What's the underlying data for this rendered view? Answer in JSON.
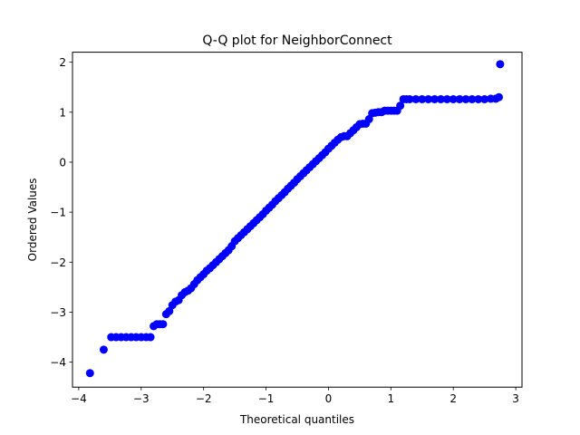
{
  "chart_data": {
    "type": "scatter",
    "title": "Q-Q plot for NeighborConnect",
    "xlabel": "Theoretical quantiles",
    "ylabel": "Ordered Values",
    "xlim": [
      -4.1,
      3.1
    ],
    "ylim": [
      -4.5,
      2.2
    ],
    "xticks": [
      -4,
      -3,
      -2,
      -1,
      0,
      1,
      2,
      3
    ],
    "xtick_labels": [
      "−4",
      "−3",
      "−2",
      "−1",
      "0",
      "1",
      "2",
      "3"
    ],
    "yticks": [
      -4,
      -3,
      -2,
      -1,
      0,
      1,
      2
    ],
    "ytick_labels": [
      "−4",
      "−3",
      "−2",
      "−1",
      "0",
      "1",
      "2"
    ],
    "grid": false,
    "marker_color": "#0000ff",
    "points": [
      [
        -3.82,
        -4.22
      ],
      [
        -3.6,
        -3.75
      ],
      [
        -3.48,
        -3.5
      ],
      [
        -3.4,
        -3.5
      ],
      [
        -3.32,
        -3.5
      ],
      [
        -3.24,
        -3.5
      ],
      [
        -3.16,
        -3.5
      ],
      [
        -3.08,
        -3.5
      ],
      [
        -3.0,
        -3.5
      ],
      [
        -2.92,
        -3.5
      ],
      [
        -2.85,
        -3.5
      ],
      [
        -2.8,
        -3.28
      ],
      [
        -2.75,
        -3.24
      ],
      [
        -2.7,
        -3.24
      ],
      [
        -2.65,
        -3.24
      ],
      [
        -2.6,
        -3.04
      ],
      [
        -2.55,
        -2.98
      ],
      [
        -2.5,
        -2.86
      ],
      [
        -2.45,
        -2.79
      ],
      [
        -2.4,
        -2.76
      ],
      [
        -2.35,
        -2.66
      ],
      [
        -2.3,
        -2.6
      ],
      [
        -2.25,
        -2.57
      ],
      [
        -2.2,
        -2.52
      ],
      [
        -2.15,
        -2.44
      ],
      [
        -2.1,
        -2.36
      ],
      [
        -2.05,
        -2.3
      ],
      [
        -2.0,
        -2.24
      ],
      [
        -1.95,
        -2.17
      ],
      [
        -1.9,
        -2.12
      ],
      [
        -1.85,
        -2.06
      ],
      [
        -1.8,
        -2.0
      ],
      [
        -1.75,
        -1.94
      ],
      [
        -1.7,
        -1.88
      ],
      [
        -1.65,
        -1.82
      ],
      [
        -1.6,
        -1.76
      ],
      [
        -1.55,
        -1.68
      ],
      [
        -1.5,
        -1.58
      ],
      [
        -1.45,
        -1.52
      ],
      [
        -1.4,
        -1.46
      ],
      [
        -1.35,
        -1.4
      ],
      [
        -1.3,
        -1.34
      ],
      [
        -1.25,
        -1.28
      ],
      [
        -1.2,
        -1.22
      ],
      [
        -1.15,
        -1.16
      ],
      [
        -1.1,
        -1.1
      ],
      [
        -1.05,
        -1.04
      ],
      [
        -1.0,
        -0.97
      ],
      [
        -0.95,
        -0.91
      ],
      [
        -0.9,
        -0.85
      ],
      [
        -0.85,
        -0.78
      ],
      [
        -0.8,
        -0.72
      ],
      [
        -0.75,
        -0.66
      ],
      [
        -0.7,
        -0.6
      ],
      [
        -0.65,
        -0.53
      ],
      [
        -0.6,
        -0.47
      ],
      [
        -0.55,
        -0.41
      ],
      [
        -0.5,
        -0.34
      ],
      [
        -0.45,
        -0.28
      ],
      [
        -0.4,
        -0.22
      ],
      [
        -0.35,
        -0.16
      ],
      [
        -0.3,
        -0.1
      ],
      [
        -0.25,
        -0.04
      ],
      [
        -0.2,
        0.02
      ],
      [
        -0.15,
        0.08
      ],
      [
        -0.1,
        0.14
      ],
      [
        -0.05,
        0.2
      ],
      [
        0.0,
        0.27
      ],
      [
        0.05,
        0.33
      ],
      [
        0.1,
        0.39
      ],
      [
        0.15,
        0.45
      ],
      [
        0.2,
        0.5
      ],
      [
        0.25,
        0.52
      ],
      [
        0.3,
        0.52
      ],
      [
        0.35,
        0.58
      ],
      [
        0.4,
        0.64
      ],
      [
        0.45,
        0.7
      ],
      [
        0.5,
        0.76
      ],
      [
        0.55,
        0.77
      ],
      [
        0.6,
        0.77
      ],
      [
        0.65,
        0.86
      ],
      [
        0.7,
        0.98
      ],
      [
        0.75,
        0.99
      ],
      [
        0.8,
        1.0
      ],
      [
        0.85,
        1.0
      ],
      [
        0.9,
        1.03
      ],
      [
        0.95,
        1.03
      ],
      [
        1.0,
        1.03
      ],
      [
        1.05,
        1.03
      ],
      [
        1.1,
        1.03
      ],
      [
        1.15,
        1.13
      ],
      [
        1.2,
        1.26
      ],
      [
        1.25,
        1.26
      ],
      [
        1.3,
        1.26
      ],
      [
        1.4,
        1.26
      ],
      [
        1.5,
        1.26
      ],
      [
        1.6,
        1.26
      ],
      [
        1.7,
        1.26
      ],
      [
        1.8,
        1.26
      ],
      [
        1.9,
        1.26
      ],
      [
        2.0,
        1.26
      ],
      [
        2.1,
        1.26
      ],
      [
        2.2,
        1.26
      ],
      [
        2.3,
        1.26
      ],
      [
        2.4,
        1.26
      ],
      [
        2.5,
        1.26
      ],
      [
        2.6,
        1.27
      ],
      [
        2.68,
        1.27
      ],
      [
        2.73,
        1.3
      ],
      [
        2.75,
        1.96
      ]
    ]
  }
}
